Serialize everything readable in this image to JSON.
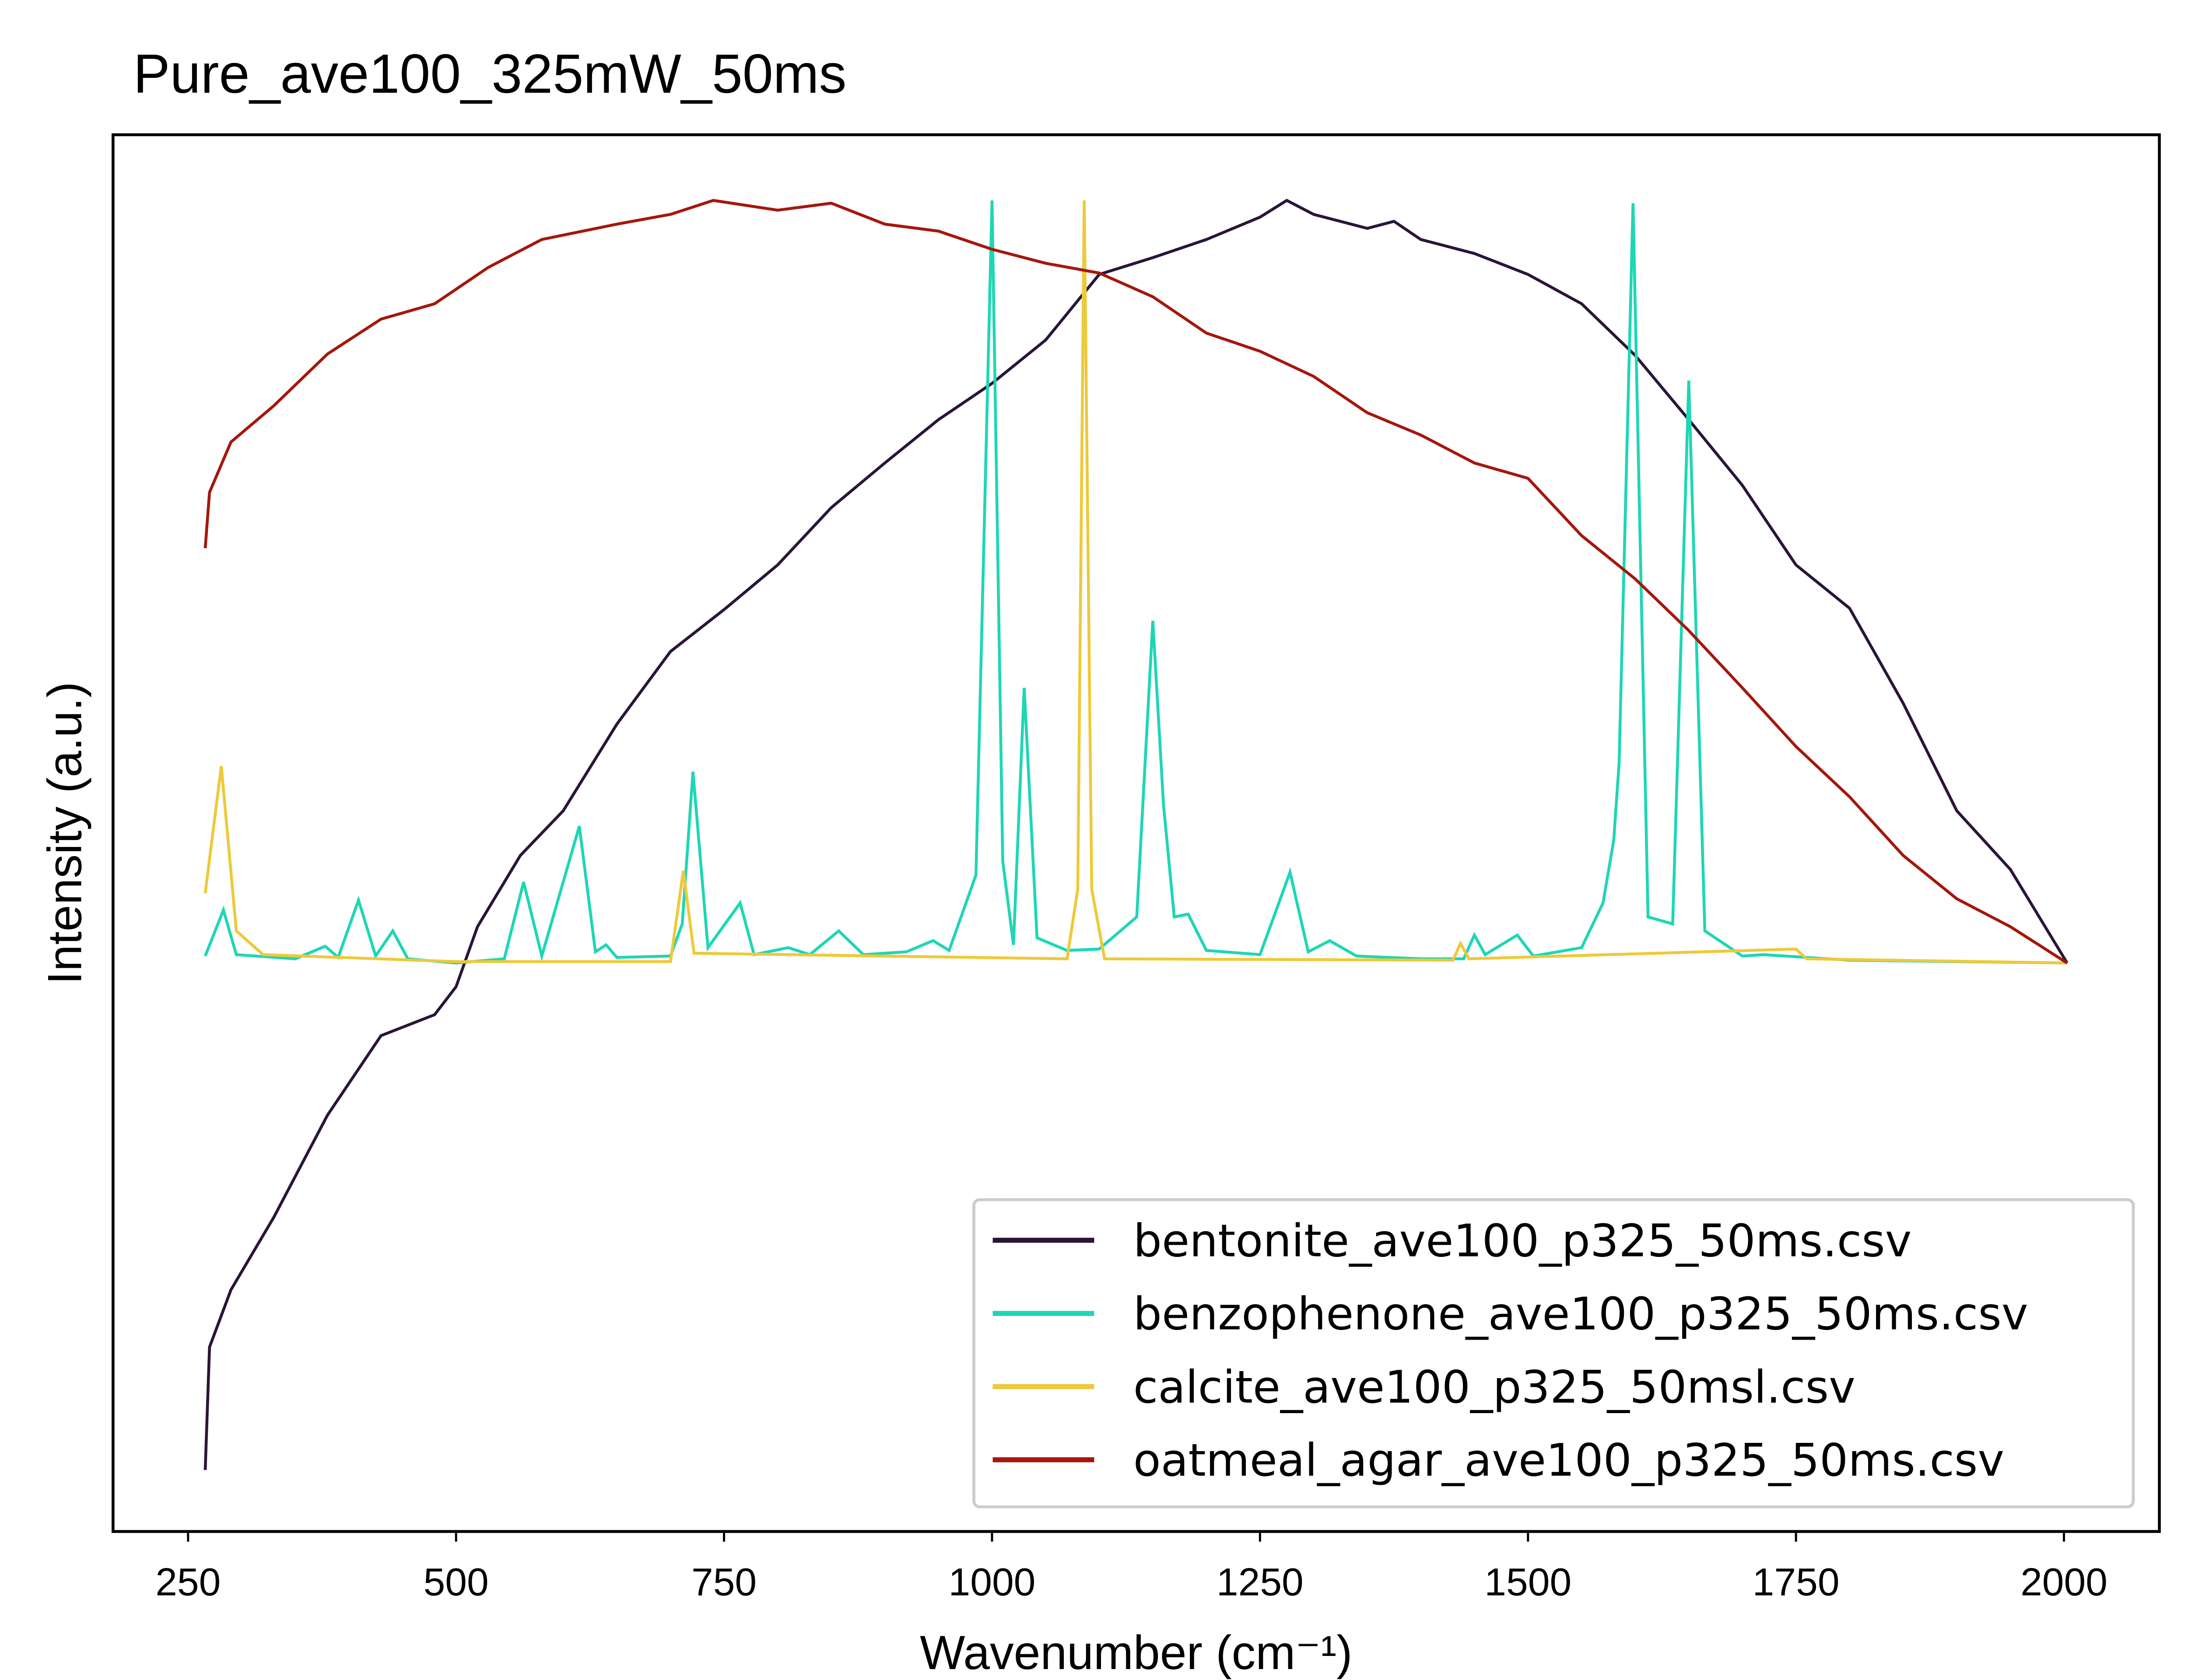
{
  "chart_data": {
    "type": "line",
    "title": "Pure_ave100_325mW_50ms",
    "xlabel": "Wavenumber (cm⁻¹)",
    "ylabel": "Intensity (a.u.)",
    "xlim": [
      180,
      2089
    ],
    "xticks": [
      250,
      500,
      750,
      1000,
      1250,
      1500,
      1750,
      2000
    ],
    "ylim": [
      0,
      100
    ],
    "legend": "lower right",
    "series": [
      {
        "name": "bentonite_ave100_p325_50ms.csv",
        "color": "#2a1538",
        "x": [
          266,
          270,
          290,
          330,
          380,
          430,
          480,
          500,
          520,
          560,
          600,
          650,
          700,
          750,
          800,
          850,
          900,
          950,
          1000,
          1050,
          1100,
          1150,
          1200,
          1250,
          1275,
          1300,
          1350,
          1375,
          1400,
          1450,
          1500,
          1550,
          1600,
          1650,
          1700,
          1750,
          1800,
          1850,
          1900,
          1950,
          2003
        ],
        "values": [
          4.4,
          13.2,
          17.3,
          22.5,
          29.8,
          35.5,
          37,
          39,
          43.3,
          48.4,
          51.6,
          57.8,
          63,
          66,
          69.2,
          73.3,
          76.5,
          79.6,
          82.2,
          85.3,
          90,
          91.2,
          92.5,
          94.1,
          95.3,
          94.3,
          93.3,
          93.8,
          92.5,
          91.5,
          90,
          87.9,
          84.2,
          79.6,
          74.9,
          69.2,
          66.1,
          59.3,
          51.6,
          47.4,
          40.7
        ]
      },
      {
        "name": "benzophenone_ave100_p325_50ms.csv",
        "color": "#1ed6b6",
        "x": [
          266,
          283,
          295,
          350,
          378,
          390,
          409,
          425,
          441,
          455,
          500,
          545,
          563,
          580,
          615,
          630,
          640,
          650,
          700,
          711,
          721,
          735,
          765,
          778,
          810,
          830,
          857,
          880,
          920,
          945,
          960,
          985,
          1000,
          1010,
          1020,
          1030,
          1042,
          1070,
          1100,
          1135,
          1150,
          1160,
          1170,
          1183,
          1200,
          1250,
          1278,
          1295,
          1315,
          1340,
          1400,
          1440,
          1450,
          1460,
          1490,
          1505,
          1550,
          1570,
          1580,
          1585,
          1598,
          1612,
          1635,
          1650,
          1665,
          1700,
          1720,
          1800,
          2003
        ],
        "values": [
          41.2,
          44.5,
          41.3,
          41,
          41.9,
          41.1,
          45.2,
          41.2,
          43,
          41,
          40.7,
          41,
          46.5,
          41.2,
          50.5,
          41.5,
          42,
          41.1,
          41.2,
          43.5,
          54.4,
          41.8,
          45,
          41.3,
          41.8,
          41.3,
          43,
          41.3,
          41.5,
          42.3,
          41.6,
          47,
          95.3,
          48,
          42,
          60.4,
          42.5,
          41.6,
          41.7,
          44,
          65.2,
          52,
          44,
          44.2,
          41.6,
          41.3,
          47.2,
          41.5,
          42.3,
          41.2,
          41,
          41,
          42.7,
          41.3,
          42.7,
          41.2,
          41.8,
          45,
          49.5,
          55,
          95.1,
          44,
          43.5,
          82.4,
          43,
          41.2,
          41.3,
          40.9,
          40.7
        ]
      },
      {
        "name": "calcite_ave100_p325_50msl.csv",
        "color": "#eec93a",
        "x": [
          266,
          281,
          295,
          320,
          500,
          700,
          712,
          722,
          1070,
          1080,
          1086,
          1093,
          1105,
          1430,
          1437,
          1445,
          1750,
          1760,
          2003
        ],
        "values": [
          45.7,
          54.8,
          43,
          41.3,
          40.8,
          40.8,
          47.3,
          41.4,
          41,
          46,
          95.3,
          46,
          41,
          40.9,
          42.1,
          41,
          41.7,
          41,
          40.7
        ]
      },
      {
        "name": "oatmeal_agar_ave100_p325_50ms.csv",
        "color": "#a4170c",
        "x": [
          266,
          270,
          290,
          330,
          380,
          430,
          480,
          530,
          580,
          650,
          700,
          740,
          800,
          850,
          900,
          950,
          1000,
          1050,
          1100,
          1150,
          1200,
          1250,
          1300,
          1350,
          1400,
          1450,
          1500,
          1550,
          1600,
          1650,
          1700,
          1750,
          1800,
          1850,
          1900,
          1950,
          2003
        ],
        "values": [
          70.4,
          74.4,
          78,
          80.6,
          84.3,
          86.8,
          87.9,
          90.5,
          92.5,
          93.6,
          94.3,
          95.3,
          94.6,
          95.1,
          93.6,
          93.1,
          91.8,
          90.8,
          90.1,
          88.4,
          85.8,
          84.5,
          82.7,
          80.1,
          78.5,
          76.5,
          75.4,
          71.3,
          68.2,
          64.5,
          60.4,
          56.2,
          52.6,
          48.4,
          45.3,
          43.3,
          40.7
        ]
      }
    ]
  }
}
